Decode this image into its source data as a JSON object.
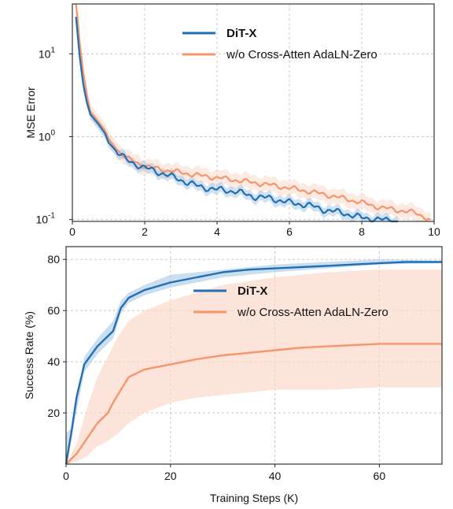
{
  "colors": {
    "ditx": "#1f6fb5",
    "ablation": "#f5956b",
    "ditx_band": "#a9c8e6",
    "ablation_band": "#fbd9cb"
  },
  "chart_data": [
    {
      "type": "line",
      "title": "",
      "xlabel": "",
      "ylabel": "MSE Error",
      "yscale": "log",
      "xlim": [
        0,
        10
      ],
      "ylim": [
        0.095,
        40
      ],
      "grid": true,
      "legend": {
        "placement": "top-center"
      },
      "x_ticks": [
        "0",
        "2",
        "4",
        "6",
        "8",
        "10"
      ],
      "y_ticks": [
        {
          "base": "10",
          "exp": "-1"
        },
        {
          "base": "10",
          "exp": "0"
        },
        {
          "base": "10",
          "exp": "1"
        }
      ],
      "series": [
        {
          "name": "DiT-X",
          "x": [
            0.1,
            0.2,
            0.3,
            0.4,
            0.5,
            0.7,
            0.9,
            1.0,
            1.2,
            1.5,
            2.0,
            2.5,
            3.0,
            3.5,
            4.0,
            4.5,
            5.0,
            5.5,
            6.0,
            6.5,
            7.0,
            7.5,
            8.0,
            8.5,
            9.0
          ],
          "y": [
            28,
            9.5,
            4.3,
            2.6,
            1.85,
            1.45,
            1.1,
            0.85,
            0.68,
            0.52,
            0.42,
            0.36,
            0.3,
            0.25,
            0.23,
            0.22,
            0.19,
            0.18,
            0.16,
            0.15,
            0.13,
            0.12,
            0.105,
            0.1,
            0.095
          ]
        },
        {
          "name": "w/o Cross-Atten AdaLN-Zero",
          "x": [
            0.1,
            0.2,
            0.3,
            0.4,
            0.5,
            0.7,
            0.9,
            1.0,
            1.2,
            1.5,
            2.0,
            2.5,
            3.0,
            3.5,
            4.0,
            4.5,
            5.0,
            5.5,
            6.0,
            6.5,
            7.0,
            7.5,
            8.0,
            8.5,
            9.0,
            9.5,
            9.9
          ],
          "y": [
            45,
            14,
            6.0,
            3.2,
            2.0,
            1.55,
            1.2,
            0.95,
            0.72,
            0.55,
            0.44,
            0.4,
            0.37,
            0.34,
            0.32,
            0.3,
            0.28,
            0.26,
            0.24,
            0.22,
            0.2,
            0.18,
            0.16,
            0.14,
            0.13,
            0.12,
            0.1
          ]
        }
      ]
    },
    {
      "type": "line",
      "title": "",
      "xlabel": "Training Steps (K)",
      "ylabel": "Success Rate (%)",
      "xlim": [
        0,
        72
      ],
      "ylim": [
        0,
        85
      ],
      "grid": true,
      "legend": {
        "placement": "center"
      },
      "x_ticks": [
        "0",
        "20",
        "40",
        "60"
      ],
      "y_ticks": [
        "20",
        "40",
        "60",
        "80"
      ],
      "series": [
        {
          "name": "DiT-X",
          "x": [
            0,
            1,
            2,
            3.5,
            6,
            8,
            9,
            10.5,
            12,
            15,
            20,
            25,
            30,
            35,
            40,
            45,
            50,
            55,
            60,
            65,
            72
          ],
          "y": [
            0,
            12,
            26,
            39,
            46,
            50,
            52,
            61,
            65,
            68,
            71,
            73,
            75,
            76,
            76.5,
            77,
            77.5,
            78,
            78.5,
            79,
            79
          ],
          "band": [
            [
              0,
              0,
              12,
              12
            ],
            [
              1,
              10,
              14
            ],
            [
              3.5,
              36,
              42
            ],
            [
              6,
              43,
              49
            ],
            [
              9,
              49,
              56
            ],
            [
              10.5,
              59,
              64
            ],
            [
              12,
              63,
              67
            ],
            [
              15,
              66,
              70
            ],
            [
              20,
              69,
              74
            ],
            [
              25,
              71,
              75
            ],
            [
              30,
              73,
              76
            ],
            [
              40,
              75,
              78
            ],
            [
              50,
              76.5,
              79
            ],
            [
              60,
              78,
              80
            ],
            [
              72,
              78.5,
              79.5
            ]
          ]
        },
        {
          "name": "w/o Cross-Atten AdaLN-Zero",
          "x": [
            0,
            2,
            4,
            6,
            8,
            9,
            10.5,
            12,
            15,
            20,
            25,
            30,
            35,
            40,
            45,
            50,
            55,
            60,
            65,
            72
          ],
          "y": [
            0,
            4,
            10,
            16,
            20,
            24,
            29,
            34,
            37,
            39,
            41,
            42.5,
            43.5,
            44.5,
            45.5,
            46,
            46.5,
            47,
            47,
            47
          ],
          "band": [
            [
              0,
              0,
              0
            ],
            [
              2,
              1,
              8
            ],
            [
              4,
              3,
              22
            ],
            [
              6,
              7,
              34
            ],
            [
              8,
              9,
              42
            ],
            [
              10,
              12,
              50
            ],
            [
              12,
              16,
              56
            ],
            [
              15,
              20,
              60
            ],
            [
              20,
              24,
              64
            ],
            [
              25,
              26,
              67
            ],
            [
              30,
              27,
              70
            ],
            [
              40,
              29,
              73
            ],
            [
              50,
              29,
              75
            ],
            [
              60,
              30,
              76
            ],
            [
              72,
              30,
              76
            ]
          ]
        }
      ]
    }
  ]
}
